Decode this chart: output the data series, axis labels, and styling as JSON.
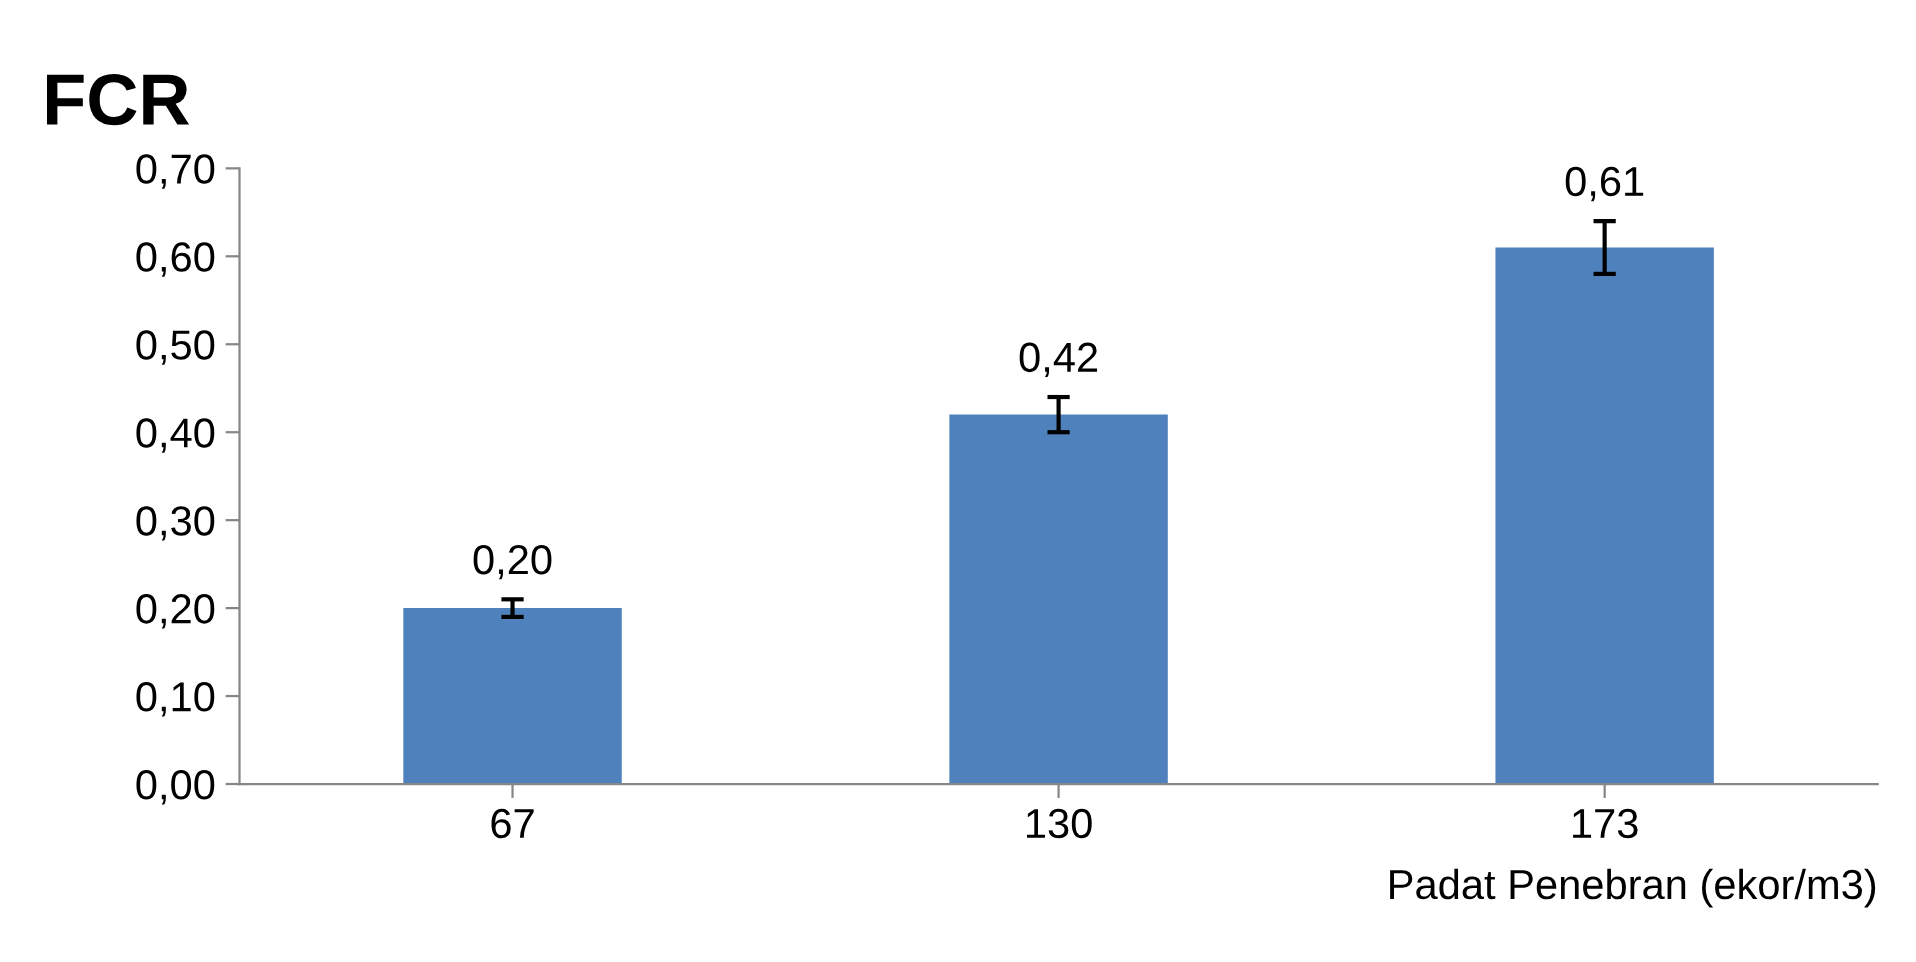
{
  "chart_data": {
    "type": "bar",
    "title": "FCR",
    "xlabel": "Padat Penebran (ekor/m3)",
    "categories": [
      "67",
      "130",
      "173"
    ],
    "values": [
      0.2,
      0.42,
      0.61
    ],
    "errors": [
      0.01,
      0.02,
      0.03
    ],
    "value_labels": [
      "0,20",
      "0,42",
      "0,61"
    ],
    "color": "#4f81bd",
    "ylim": [
      0,
      0.7
    ],
    "yticks": [
      {
        "value": 0,
        "label": "0,00"
      },
      {
        "value": 0.1,
        "label": "0,10"
      },
      {
        "value": 0.2,
        "label": "0,20"
      },
      {
        "value": 0.3,
        "label": "0,30"
      },
      {
        "value": 0.4,
        "label": "0,40"
      },
      {
        "value": 0.5,
        "label": "0,50"
      },
      {
        "value": 0.6,
        "label": "0,60"
      },
      {
        "value": 0.7,
        "label": "0,70"
      }
    ],
    "grid": false,
    "legend": false
  }
}
